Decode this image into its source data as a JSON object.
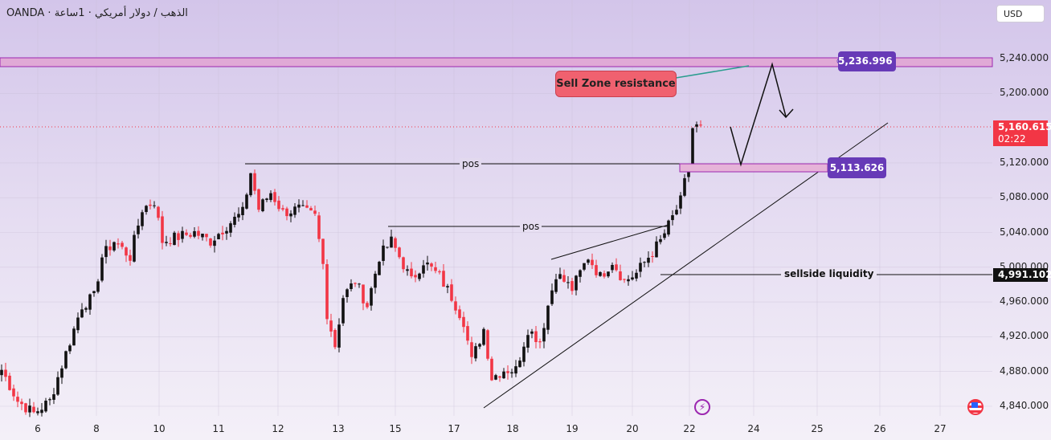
{
  "header": {
    "title": "OANDA · الذهب / دولار أمريكي · 1ساعة",
    "currency_button": "USD"
  },
  "colors": {
    "up": "#111111",
    "down": "#f23645",
    "zone_fill": "#e0a9d6",
    "zone_border": "#9c27b0",
    "label_purple": "#673ab7",
    "callout": "#f0616f",
    "price_badge": "#f23645"
  },
  "annotations": {
    "sell_zone_label": "Sell Zone resistance",
    "sell_zone_price": "5,236.996",
    "support_box_price": "5,113.626",
    "pos_label_1": "pos",
    "pos_label_2": "pos",
    "sellside_label": "sellside liquidity",
    "sellside_price": "4,991.102"
  },
  "current_price": {
    "value": "5,160.615",
    "countdown": "02:22"
  },
  "icons": [
    "lightning-icon",
    "us-flag-icon"
  ],
  "chart_data": {
    "type": "candlestick",
    "symbol": "XAUUSD",
    "timeframe": "1h",
    "ylim": [
      4830,
      5260
    ],
    "y_ticks": [
      "5,240.000",
      "5,200.000",
      "5,120.000",
      "5,080.000",
      "5,040.000",
      "5,000.000",
      "4,960.000",
      "4,920.000",
      "4,880.000",
      "4,840.000"
    ],
    "y_tick_values": [
      5240,
      5200,
      5120,
      5080,
      5040,
      5000,
      4960,
      4920,
      4880,
      4840
    ],
    "x_ticks": [
      "6",
      "8",
      "10",
      "11",
      "12",
      "13",
      "15",
      "17",
      "18",
      "19",
      "20",
      "22",
      "24",
      "25",
      "26",
      "27"
    ],
    "close_waypoints": [
      [
        0,
        4882
      ],
      [
        4,
        4846
      ],
      [
        8,
        4832
      ],
      [
        12,
        4846
      ],
      [
        16,
        4901
      ],
      [
        20,
        4956
      ],
      [
        23,
        4966
      ],
      [
        25,
        5012
      ],
      [
        28,
        5030
      ],
      [
        32,
        5012
      ],
      [
        35,
        5067
      ],
      [
        38,
        5076
      ],
      [
        40,
        5030
      ],
      [
        44,
        5035
      ],
      [
        48,
        5040
      ],
      [
        52,
        5030
      ],
      [
        56,
        5048
      ],
      [
        60,
        5063
      ],
      [
        62,
        5109
      ],
      [
        64,
        5067
      ],
      [
        67,
        5086
      ],
      [
        70,
        5063
      ],
      [
        74,
        5067
      ],
      [
        78,
        5058
      ],
      [
        80,
        5003
      ],
      [
        81,
        4947
      ],
      [
        83,
        4910
      ],
      [
        85,
        4966
      ],
      [
        88,
        4984
      ],
      [
        91,
        4956
      ],
      [
        94,
        5012
      ],
      [
        97,
        5030
      ],
      [
        100,
        5003
      ],
      [
        102,
        4984
      ],
      [
        105,
        5007
      ],
      [
        109,
        4989
      ],
      [
        112,
        4966
      ],
      [
        115,
        4938
      ],
      [
        117,
        4892
      ],
      [
        120,
        4929
      ],
      [
        122,
        4873
      ],
      [
        125,
        4882
      ],
      [
        128,
        4882
      ],
      [
        131,
        4929
      ],
      [
        134,
        4915
      ],
      [
        136,
        4956
      ],
      [
        138,
        4993
      ],
      [
        142,
        4975
      ],
      [
        146,
        5012
      ],
      [
        149,
        4989
      ],
      [
        152,
        5007
      ],
      [
        155,
        4984
      ],
      [
        158,
        4993
      ],
      [
        161,
        5012
      ],
      [
        164,
        5030
      ],
      [
        166,
        5048
      ],
      [
        169,
        5076
      ],
      [
        171,
        5118
      ],
      [
        172,
        5160
      ],
      [
        174,
        5163
      ]
    ],
    "levels": [
      {
        "name": "sell zone resistance",
        "value": 5236.996
      },
      {
        "name": "support box",
        "value": 5113.626
      },
      {
        "name": "pos high 11th",
        "value": 5117
      },
      {
        "name": "pos high 14th",
        "value": 5046
      },
      {
        "name": "sellside liquidity",
        "value": 4991.102
      },
      {
        "name": "current price",
        "value": 5160.615
      }
    ]
  }
}
